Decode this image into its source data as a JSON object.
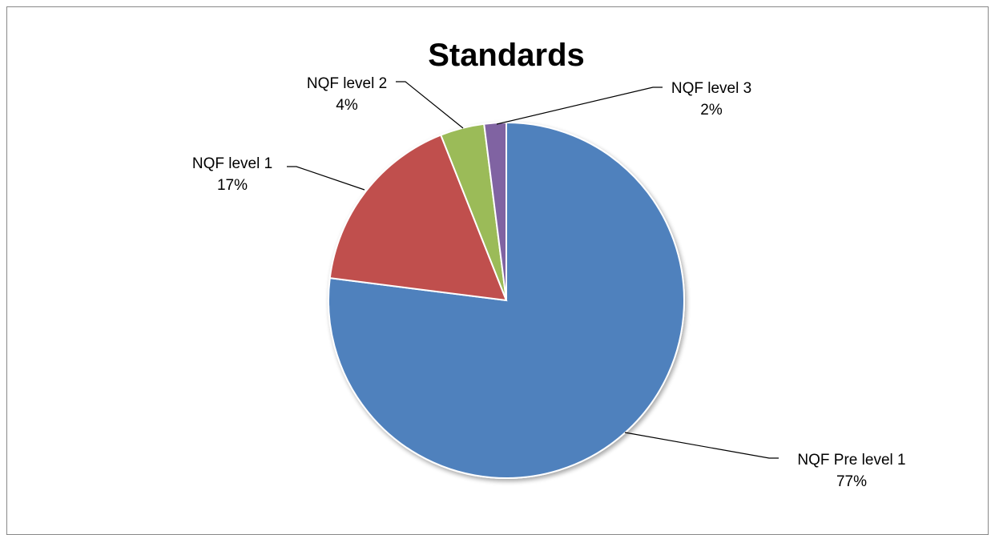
{
  "chart_data": {
    "type": "pie",
    "title": "Standards",
    "slices": [
      {
        "label": "NQF Pre level 1",
        "percent_label": "77%",
        "value": 77,
        "color": "#4F81BD"
      },
      {
        "label": "NQF level 1",
        "percent_label": "17%",
        "value": 17,
        "color": "#C0504D"
      },
      {
        "label": "NQF level 2",
        "percent_label": "4%",
        "value": 4,
        "color": "#9BBB59"
      },
      {
        "label": "NQF level 3",
        "percent_label": "2%",
        "value": 2,
        "color": "#8064A2"
      }
    ],
    "legend": "none",
    "data_labels": "outside-with-leader-lines"
  }
}
